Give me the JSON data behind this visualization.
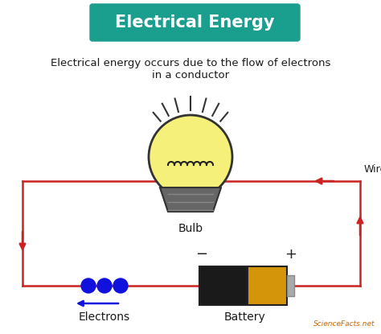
{
  "title": "Electrical Energy",
  "title_bg": "#1a9e8e",
  "title_color": "#ffffff",
  "subtitle": "Electrical energy occurs due to the flow of electrons\nin a conductor",
  "subtitle_color": "#1a1a1a",
  "bg_color": "#ffffff",
  "circuit_color": "#cc2222",
  "bulb_body_color": "#f5f07a",
  "bulb_base_color": "#555555",
  "battery_black": "#1a1a1a",
  "battery_gold": "#d4950a",
  "battery_tip": "#aaaaaa",
  "electron_color": "#1111dd",
  "label_color": "#1a1a1a",
  "wire_label": "Wire",
  "bulb_label": "Bulb",
  "battery_label": "Battery",
  "electrons_label": "Electrons",
  "sciencefacts_color": "#cc6600"
}
